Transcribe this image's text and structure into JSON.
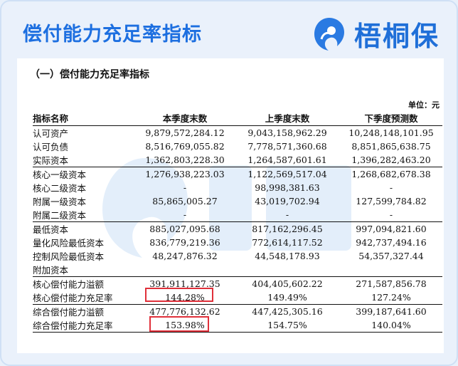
{
  "page_title": "偿付能力充足率指标",
  "logo_text": "梧桐保",
  "section_title": "（一）偿付能力充足率指标",
  "unit_label": "单位：元",
  "columns": [
    "指标名称",
    "本季度末数",
    "上季度末数",
    "下季度预测数"
  ],
  "groups": [
    {
      "rows": [
        [
          "认可资产",
          "9,879,572,284.12",
          "9,043,158,962.29",
          "10,248,148,101.95"
        ],
        [
          "认可负债",
          "8,516,769,055.82",
          "7,778,571,360.68",
          "8,851,865,638.75"
        ],
        [
          "实际资本",
          "1,362,803,228.30",
          "1,264,587,601.61",
          "1,396,282,463.20"
        ]
      ]
    },
    {
      "rows": [
        [
          "核心一级资本",
          "1,276,938,223.03",
          "1,122,569,517.04",
          "1,268,682,678.38"
        ],
        [
          "核心二级资本",
          "-",
          "98,998,381.63",
          "-"
        ],
        [
          "附属一级资本",
          "85,865,005.27",
          "43,019,702.94",
          "127,599,784.82"
        ],
        [
          "附属二级资本",
          "-",
          "-",
          "-"
        ]
      ]
    },
    {
      "rows": [
        [
          "最低资本",
          "885,027,095.68",
          "817,162,296.45",
          "997,094,821.60"
        ],
        [
          "量化风险最低资本",
          "836,779,219.36",
          "772,614,117.52",
          "942,737,494.16"
        ],
        [
          "控制风险最低资本",
          "48,247,876.32",
          "44,548,178.93",
          "54,357,327.44"
        ],
        [
          "附加资本",
          "",
          "",
          ""
        ]
      ]
    },
    {
      "rows": [
        [
          "核心偿付能力溢额",
          "391,911,127.35",
          "404,405,602.22",
          "271,587,856.78"
        ],
        [
          "核心偿付能力充足率",
          "144.28%",
          "149.49%",
          "127.24%"
        ]
      ]
    },
    {
      "rows": [
        [
          "综合偿付能力溢额",
          "477,776,132.62",
          "447,425,305.16",
          "399,187,641.60"
        ],
        [
          "综合偿付能力充足率",
          "153.98%",
          "154.75%",
          "140.04%"
        ]
      ]
    }
  ],
  "colors": {
    "title": "#1d6fe0",
    "highlight": "#e0303a",
    "logo": "#1f6fd8"
  }
}
